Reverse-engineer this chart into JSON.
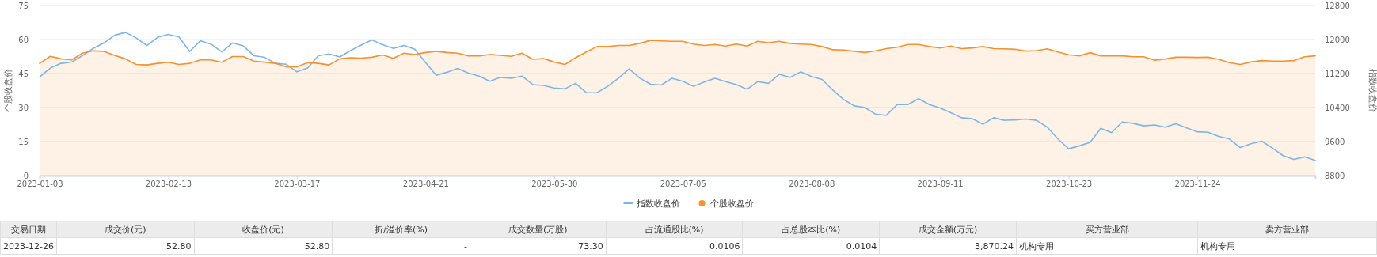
{
  "chart_data": [
    {
      "type": "line",
      "ylabel": "个股收盘价",
      "y2label": "指数收盘价",
      "ylim": [
        0,
        75
      ],
      "yticks": [
        0,
        15,
        30,
        45,
        60,
        75
      ],
      "y2lim": [
        8800,
        12800
      ],
      "y2ticks": [
        8800,
        9600,
        10400,
        11200,
        12000,
        12800
      ],
      "grid": "y",
      "legend": "bottom",
      "categories": [
        "2023-01-03",
        null,
        null,
        null,
        null,
        null,
        null,
        null,
        null,
        null,
        null,
        null,
        "2023-02-13",
        null,
        null,
        null,
        null,
        null,
        null,
        null,
        null,
        null,
        null,
        null,
        "2023-03-17",
        null,
        null,
        null,
        null,
        null,
        null,
        null,
        null,
        null,
        null,
        null,
        "2023-04-21",
        null,
        null,
        null,
        null,
        null,
        null,
        null,
        null,
        null,
        null,
        null,
        "2023-05-30",
        null,
        null,
        null,
        null,
        null,
        null,
        null,
        null,
        null,
        null,
        null,
        "2023-07-05",
        null,
        null,
        null,
        null,
        null,
        null,
        null,
        null,
        null,
        null,
        null,
        "2023-08-08",
        null,
        null,
        null,
        null,
        null,
        null,
        null,
        null,
        null,
        null,
        null,
        "2023-09-11",
        null,
        null,
        null,
        null,
        null,
        null,
        null,
        null,
        null,
        null,
        null,
        "2023-10-23",
        null,
        null,
        null,
        null,
        null,
        null,
        null,
        null,
        null,
        null,
        null,
        "2023-11-24",
        null,
        null,
        null,
        null,
        null,
        null,
        null,
        null,
        null,
        null,
        null
      ],
      "series": [
        {
          "name": "指数收盘价",
          "type": "line",
          "axis": "y2",
          "color": "#7cb5ec",
          "values": [
            11120,
            11330,
            11440,
            11470,
            11620,
            11790,
            11920,
            12100,
            12170,
            12040,
            11860,
            12050,
            12120,
            12060,
            11720,
            11970,
            11890,
            11710,
            11920,
            11850,
            11620,
            11580,
            11440,
            11420,
            11240,
            11330,
            11620,
            11660,
            11590,
            11740,
            11870,
            11990,
            11880,
            11790,
            11860,
            11770,
            11460,
            11160,
            11230,
            11320,
            11210,
            11140,
            11020,
            11110,
            11090,
            11140,
            10940,
            10920,
            10860,
            10840,
            10970,
            10750,
            10750,
            10900,
            11090,
            11310,
            11090,
            10950,
            10930,
            11090,
            11020,
            10900,
            11000,
            11090,
            11010,
            10940,
            10830,
            11010,
            10970,
            11180,
            11110,
            11240,
            11130,
            11060,
            10810,
            10590,
            10440,
            10400,
            10240,
            10220,
            10470,
            10470,
            10610,
            10470,
            10390,
            10280,
            10160,
            10140,
            10010,
            10160,
            10100,
            10110,
            10130,
            10100,
            9940,
            9660,
            9430,
            9500,
            9580,
            9910,
            9810,
            10060,
            10030,
            9970,
            9990,
            9940,
            10020,
            9920,
            9830,
            9820,
            9720,
            9660,
            9460,
            9550,
            9610,
            9450,
            9270,
            9180,
            9240,
            9160
          ]
        },
        {
          "name": "个股收盘价",
          "type": "area",
          "color": "#f7902e",
          "values": [
            49.5,
            52.6,
            51.5,
            51,
            54,
            55,
            54.8,
            53,
            51.5,
            49,
            48.8,
            49.5,
            50,
            49,
            49.5,
            51,
            51,
            50,
            52.5,
            52.5,
            50.5,
            50,
            49.5,
            48,
            48,
            49.8,
            49.5,
            48.8,
            51.5,
            52,
            51.8,
            52.2,
            53.2,
            51.7,
            54,
            53.4,
            54.3,
            54.8,
            54.3,
            54,
            52.8,
            52.8,
            53.4,
            53,
            52.6,
            54,
            51.3,
            51.6,
            50.1,
            49,
            52,
            54.5,
            56.9,
            56.9,
            57.4,
            57.4,
            58.3,
            59.7,
            59.4,
            59.2,
            59.2,
            58,
            57.4,
            57.8,
            57.1,
            58,
            57.1,
            59.2,
            58.6,
            59.2,
            58.3,
            58,
            57.8,
            56.9,
            55.5,
            55.4,
            54.8,
            54.3,
            55,
            56,
            56.6,
            57.8,
            57.8,
            56.9,
            56.3,
            57.1,
            56,
            56.3,
            56.9,
            56,
            55.9,
            55.7,
            54.9,
            55.1,
            55.9,
            54.5,
            53.3,
            52.8,
            54.2,
            52.8,
            52.8,
            52.8,
            52.4,
            52.4,
            50.9,
            51.4,
            52.2,
            52.2,
            52.1,
            52.2,
            51.3,
            49.8,
            49,
            50.1,
            50.7,
            50.5,
            50.5,
            50.7,
            52.4,
            52.8
          ]
        }
      ]
    },
    {
      "type": "other",
      "annotations": [
        "交易日期",
        "成交价(元)",
        "收盘价(元)",
        "折/溢价率(%)",
        "成交数量(万股)",
        "占流通股比(%)",
        "占总股本比(%)",
        "成交金额(万元)",
        "买方营业部",
        "卖方营业部",
        "2023-12-26",
        "52.80",
        "52.80",
        "-",
        "73.30",
        "0.0106",
        "0.0104",
        "3,870.24",
        "机构专用",
        "机构专用"
      ]
    }
  ]
}
